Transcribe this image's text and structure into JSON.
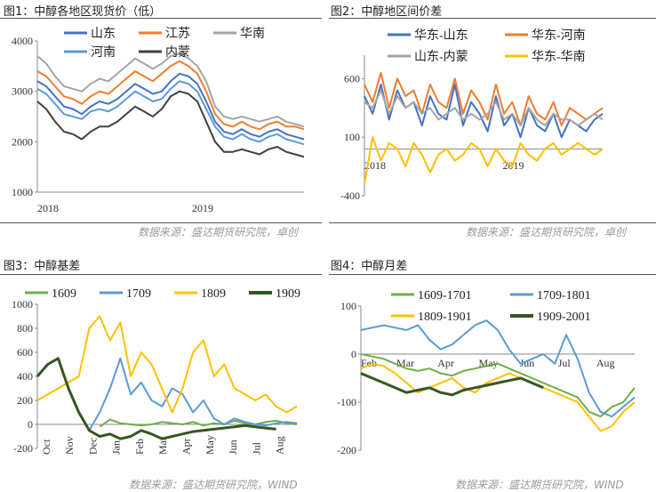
{
  "panels": [
    {
      "title": "图1：中醇各地区现货价（低）",
      "source": "数据来源：盛达期货研究院，卓创"
    },
    {
      "title": "图2：中醇地区间价差",
      "source": "数据来源：盛达期货研究院，卓创"
    },
    {
      "title": "图3：中醇基差",
      "source": "数据来源：盛达期货研究院，WIND"
    },
    {
      "title": "图4：中醇月差",
      "source": "数据来源：盛达期货研究院，WIND"
    }
  ],
  "chart_data": [
    {
      "type": "line",
      "title": "图1：中醇各地区现货价（低）",
      "ylim": [
        1000,
        4000
      ],
      "yticks": [
        "1000",
        "2000",
        "3000",
        "4000"
      ],
      "xticks": [
        "2018",
        "2019"
      ],
      "legend_position": "top",
      "legend": [
        "山东",
        "江苏",
        "华南",
        "河南",
        "内蒙"
      ],
      "colors": {
        "山东": "#4472c4",
        "江苏": "#ed7d31",
        "华南": "#a5a5a5",
        "河南": "#5b9bd5",
        "内蒙": "#404040"
      },
      "series": [
        {
          "name": "山东",
          "values": [
            3200,
            3100,
            2900,
            2700,
            2650,
            2550,
            2700,
            2800,
            2750,
            2850,
            3000,
            3150,
            3050,
            2950,
            3000,
            3200,
            3350,
            3300,
            3150,
            2800,
            2400,
            2200,
            2150,
            2250,
            2150,
            2100,
            2200,
            2250,
            2150,
            2100,
            2050
          ]
        },
        {
          "name": "江苏",
          "values": [
            3400,
            3300,
            3100,
            2900,
            2850,
            2750,
            2900,
            3000,
            2950,
            3100,
            3250,
            3400,
            3300,
            3200,
            3350,
            3500,
            3600,
            3500,
            3350,
            3000,
            2550,
            2350,
            2300,
            2400,
            2300,
            2250,
            2350,
            2400,
            2300,
            2300,
            2250
          ]
        },
        {
          "name": "华南",
          "values": [
            3700,
            3550,
            3300,
            3100,
            3050,
            3000,
            3150,
            3250,
            3200,
            3350,
            3500,
            3650,
            3550,
            3450,
            3550,
            3700,
            3750,
            3650,
            3500,
            3200,
            2700,
            2500,
            2450,
            2500,
            2450,
            2400,
            2450,
            2500,
            2400,
            2350,
            2300
          ]
        },
        {
          "name": "河南",
          "values": [
            3050,
            2950,
            2750,
            2550,
            2500,
            2450,
            2600,
            2650,
            2600,
            2700,
            2850,
            3000,
            2900,
            2800,
            2850,
            3050,
            3200,
            3150,
            3000,
            2650,
            2300,
            2100,
            2050,
            2150,
            2050,
            2000,
            2100,
            2150,
            2050,
            2000,
            1950
          ]
        },
        {
          "name": "内蒙",
          "values": [
            2800,
            2650,
            2400,
            2200,
            2150,
            2050,
            2200,
            2300,
            2300,
            2400,
            2550,
            2700,
            2600,
            2500,
            2650,
            2900,
            3000,
            2950,
            2800,
            2400,
            2000,
            1800,
            1800,
            1850,
            1800,
            1750,
            1850,
            1900,
            1800,
            1750,
            1700
          ]
        }
      ]
    },
    {
      "type": "line",
      "title": "图2：中醇地区间价差",
      "ylim": [
        -400,
        800
      ],
      "yticks": [
        "-400",
        "100",
        "600"
      ],
      "xticks": [
        "2018",
        "2019"
      ],
      "legend_position": "top",
      "legend": [
        "华东-山东",
        "华东-河南",
        "山东-内蒙",
        "华东-华南"
      ],
      "colors": {
        "华东-山东": "#4472c4",
        "华东-河南": "#ed7d31",
        "山东-内蒙": "#a5a5a5",
        "华东-华南": "#ffc000"
      },
      "series": [
        {
          "name": "华东-山东",
          "values": [
            450,
            300,
            550,
            250,
            500,
            350,
            400,
            200,
            450,
            300,
            250,
            550,
            200,
            400,
            300,
            150,
            450,
            200,
            300,
            100,
            350,
            200,
            150,
            300,
            100,
            250,
            200,
            150,
            250,
            300
          ]
        },
        {
          "name": "华东-河南",
          "values": [
            550,
            400,
            650,
            350,
            600,
            450,
            500,
            300,
            550,
            400,
            350,
            600,
            300,
            500,
            400,
            250,
            550,
            300,
            400,
            200,
            450,
            300,
            250,
            400,
            200,
            350,
            300,
            250,
            300,
            350
          ]
        },
        {
          "name": "山东-内蒙",
          "values": [
            400,
            350,
            500,
            300,
            450,
            350,
            400,
            300,
            350,
            250,
            300,
            350,
            250,
            300,
            250,
            300,
            400,
            250,
            300,
            200,
            350,
            250,
            200,
            300,
            250,
            250,
            200,
            250,
            300,
            250
          ]
        },
        {
          "name": "华东-华南",
          "values": [
            -300,
            100,
            -100,
            50,
            0,
            -150,
            50,
            -50,
            -200,
            -50,
            0,
            -100,
            -50,
            50,
            0,
            -150,
            0,
            -100,
            -150,
            50,
            -50,
            -100,
            0,
            50,
            -50,
            0,
            50,
            0,
            -50,
            0
          ]
        }
      ]
    },
    {
      "type": "line",
      "title": "图3：中醇基差",
      "ylim": [
        -200,
        1000
      ],
      "yticks": [
        "-200",
        "0",
        "200",
        "400",
        "600",
        "800",
        "1000"
      ],
      "xticks": [
        "Oct",
        "Nov",
        "Dec",
        "Jan",
        "Feb",
        "Mar",
        "Apr",
        "May",
        "Jun",
        "Jul",
        "Aug"
      ],
      "legend_position": "top",
      "legend": [
        "1609",
        "1709",
        "1809",
        "1909"
      ],
      "colors": {
        "1609": "#70ad47",
        "1709": "#5b9bd5",
        "1809": "#ffc000",
        "1909": "#375623"
      },
      "series": [
        {
          "name": "1609",
          "values": [
            null,
            null,
            null,
            null,
            null,
            null,
            -20,
            40,
            10,
            0,
            -10,
            0,
            20,
            10,
            0,
            20,
            -10,
            10,
            0,
            30,
            10,
            0,
            20,
            30,
            10,
            0
          ]
        },
        {
          "name": "1709",
          "values": [
            null,
            null,
            null,
            null,
            null,
            -50,
            100,
            300,
            550,
            250,
            350,
            200,
            150,
            300,
            250,
            100,
            200,
            50,
            0,
            50,
            20,
            0,
            -10,
            10,
            20,
            10
          ]
        },
        {
          "name": "1809",
          "values": [
            200,
            250,
            300,
            350,
            400,
            800,
            900,
            700,
            850,
            400,
            600,
            500,
            300,
            100,
            300,
            600,
            700,
            400,
            500,
            300,
            250,
            200,
            250,
            150,
            100,
            150
          ]
        },
        {
          "name": "1909",
          "values": [
            400,
            500,
            550,
            300,
            100,
            -50,
            -100,
            -80,
            -120,
            -100,
            -50,
            -80,
            -120,
            -100,
            -80,
            -60,
            -50,
            -40,
            -30,
            -20,
            -10,
            -20,
            -30,
            -40,
            null,
            null
          ]
        }
      ]
    },
    {
      "type": "line",
      "title": "图4：中醇月差",
      "ylim": [
        -200,
        100
      ],
      "yticks": [
        "-200",
        "-100",
        "0",
        "100"
      ],
      "xticks": [
        "Feb",
        "Mar",
        "Apr",
        "May",
        "Jun",
        "Jul",
        "Aug"
      ],
      "legend_position": "top",
      "legend": [
        "1609-1701",
        "1709-1801",
        "1809-1901",
        "1909-2001"
      ],
      "colors": {
        "1609-1701": "#70ad47",
        "1709-1801": "#5b9bd5",
        "1809-1901": "#ffc000",
        "1909-2001": "#375623"
      },
      "series": [
        {
          "name": "1609-1701",
          "values": [
            0,
            -5,
            -10,
            -20,
            -30,
            -35,
            -30,
            -40,
            -45,
            -35,
            -30,
            -25,
            -20,
            -30,
            -40,
            -50,
            -60,
            -70,
            -80,
            -90,
            -120,
            -130,
            -110,
            -100,
            -70
          ]
        },
        {
          "name": "1709-1801",
          "values": [
            50,
            55,
            60,
            55,
            50,
            60,
            30,
            10,
            20,
            40,
            60,
            70,
            50,
            10,
            -20,
            -10,
            0,
            -20,
            40,
            -10,
            -80,
            -120,
            -130,
            -110,
            -90
          ]
        },
        {
          "name": "1809-1901",
          "values": [
            -30,
            -20,
            -25,
            -40,
            -60,
            -80,
            -70,
            -60,
            -50,
            -70,
            -80,
            -60,
            -50,
            -40,
            -50,
            -60,
            -70,
            -80,
            -90,
            -100,
            -130,
            -160,
            -150,
            -120,
            -100
          ]
        },
        {
          "name": "1909-2001",
          "values": [
            -40,
            -50,
            -60,
            -70,
            -80,
            -75,
            -70,
            -80,
            -85,
            -75,
            -70,
            -65,
            -60,
            -55,
            -50,
            -60,
            -70,
            null,
            null,
            null,
            null,
            null,
            null,
            null,
            null
          ]
        }
      ]
    }
  ]
}
